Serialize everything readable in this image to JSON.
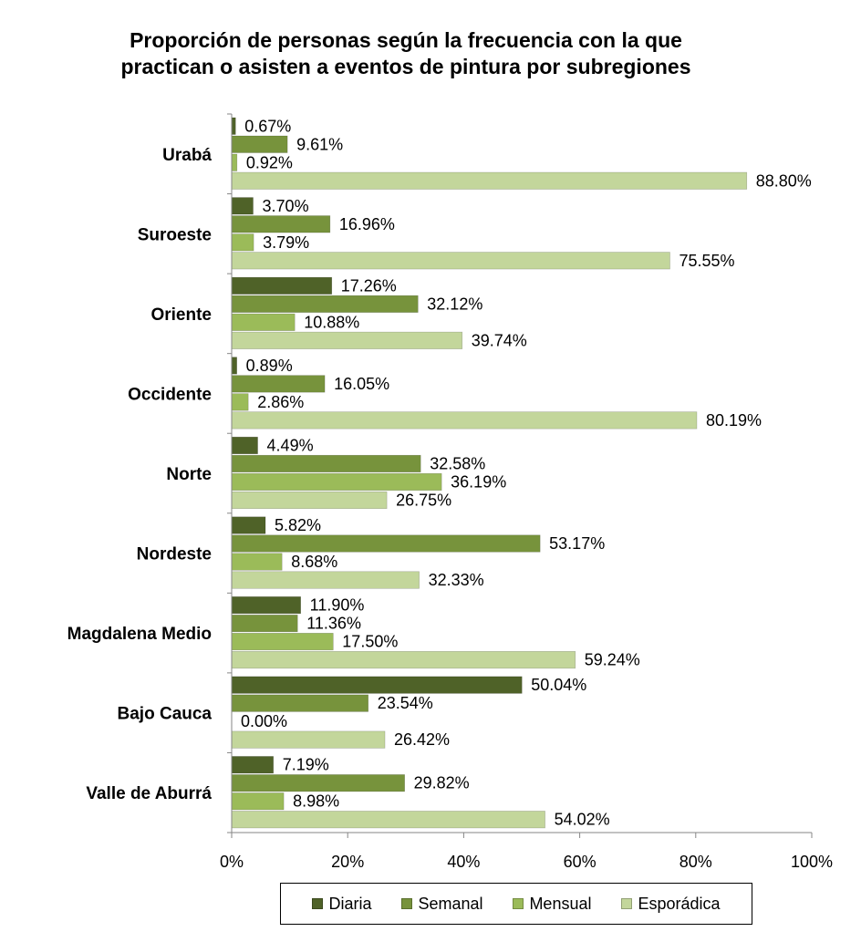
{
  "chart_data": {
    "type": "bar",
    "orientation": "horizontal",
    "title_lines": [
      "Proporción de personas según la frecuencia con la que",
      "practican o asisten a eventos de pintura por subregiones"
    ],
    "categories": [
      "Urabá",
      "Suroeste",
      "Oriente",
      "Occidente",
      "Norte",
      "Nordeste",
      "Magdalena Medio",
      "Bajo Cauca",
      "Valle de Aburrá"
    ],
    "series": [
      {
        "name": "Diaria",
        "color": "#4f6228",
        "values": [
          0.67,
          3.7,
          17.26,
          0.89,
          4.49,
          5.82,
          11.9,
          50.04,
          7.19
        ],
        "labels": [
          "0.67%",
          "3.70%",
          "17.26%",
          "0.89%",
          "4.49%",
          "5.82%",
          "11.90%",
          "50.04%",
          "7.19%"
        ]
      },
      {
        "name": "Semanal",
        "color": "#77933c",
        "values": [
          9.61,
          16.96,
          32.12,
          16.05,
          32.58,
          53.17,
          11.36,
          23.54,
          29.82
        ],
        "labels": [
          "9.61%",
          "16.96%",
          "32.12%",
          "16.05%",
          "32.58%",
          "53.17%",
          "11.36%",
          "23.54%",
          "29.82%"
        ]
      },
      {
        "name": "Mensual",
        "color": "#9bbb59",
        "values": [
          0.92,
          3.79,
          10.88,
          2.86,
          36.19,
          8.68,
          17.5,
          0.0,
          8.98
        ],
        "labels": [
          "0.92%",
          "3.79%",
          "10.88%",
          "2.86%",
          "36.19%",
          "8.68%",
          "17.50%",
          "0.00%",
          "8.98%"
        ]
      },
      {
        "name": "Esporádica",
        "color": "#c3d69b",
        "values": [
          88.8,
          75.55,
          39.74,
          80.19,
          26.75,
          32.33,
          59.24,
          26.42,
          54.02
        ],
        "labels": [
          "88.80%",
          "75.55%",
          "39.74%",
          "80.19%",
          "26.75%",
          "32.33%",
          "59.24%",
          "26.42%",
          "54.02%"
        ]
      }
    ],
    "xlim": [
      0,
      100
    ],
    "x_ticks": [
      0,
      20,
      40,
      60,
      80,
      100
    ],
    "x_tick_labels": [
      "0%",
      "20%",
      "40%",
      "60%",
      "80%",
      "100%"
    ],
    "grid": false,
    "legend_position": "bottom"
  }
}
